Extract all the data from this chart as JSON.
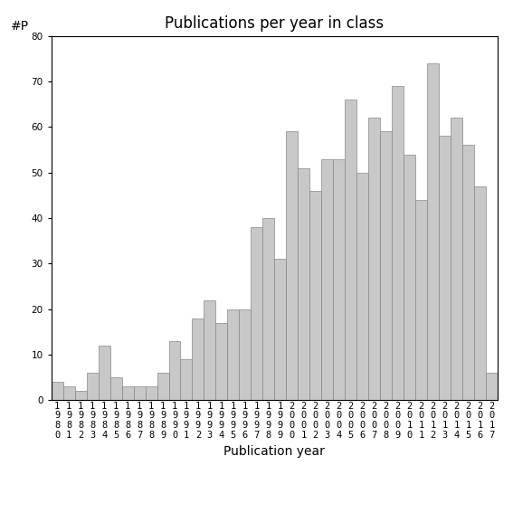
{
  "title": "Publications per year in class",
  "xlabel": "Publication year",
  "ylabel": "#P",
  "years": [
    1980,
    1981,
    1982,
    1983,
    1984,
    1985,
    1986,
    1987,
    1988,
    1989,
    1990,
    1991,
    1992,
    1993,
    1994,
    1995,
    1996,
    1997,
    1998,
    1999,
    2000,
    2001,
    2002,
    2003,
    2004,
    2005,
    2006,
    2007,
    2008,
    2009,
    2010,
    2011,
    2012,
    2013,
    2014,
    2015,
    2016,
    2017
  ],
  "values": [
    4,
    3,
    2,
    6,
    12,
    5,
    3,
    3,
    3,
    6,
    13,
    9,
    18,
    22,
    17,
    20,
    20,
    38,
    40,
    31,
    59,
    51,
    46,
    53,
    53,
    66,
    50,
    62,
    59,
    69,
    54,
    44,
    74,
    58,
    62,
    56,
    47,
    6
  ],
  "bar_color": "#c8c8c8",
  "bar_edge_color": "#888888",
  "bar_edge_width": 0.5,
  "ylim": [
    0,
    80
  ],
  "yticks": [
    0,
    10,
    20,
    30,
    40,
    50,
    60,
    70,
    80
  ],
  "bg_color": "#ffffff",
  "title_fontsize": 12,
  "label_fontsize": 10,
  "tick_fontsize": 7.5
}
